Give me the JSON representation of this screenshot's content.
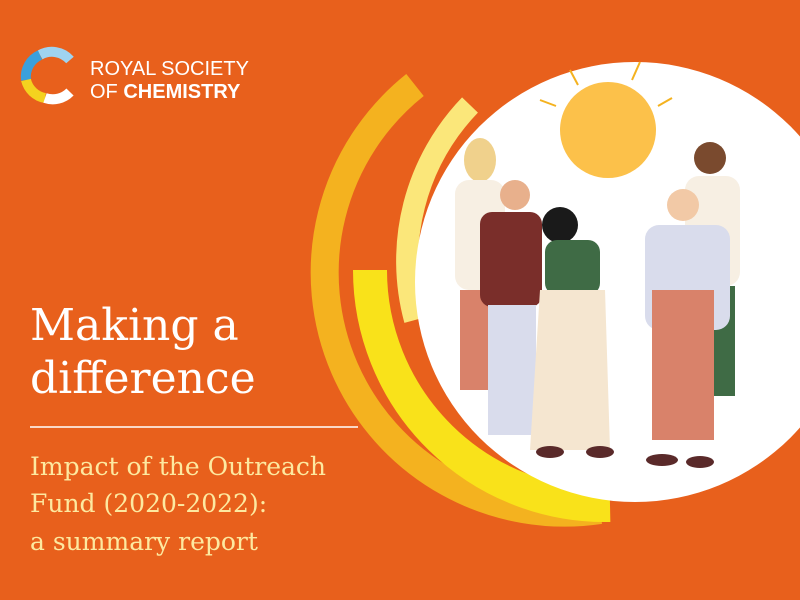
{
  "logo": {
    "line1": "ROYAL SOCIETY",
    "line2_prefix": "OF",
    "line2_bold": "CHEMISTRY"
  },
  "title": {
    "lines": [
      "Making a",
      "difference"
    ]
  },
  "subtitle": {
    "lines": [
      "Impact of the Outreach",
      "Fund (2020-2022):",
      "a summary report"
    ]
  }
}
